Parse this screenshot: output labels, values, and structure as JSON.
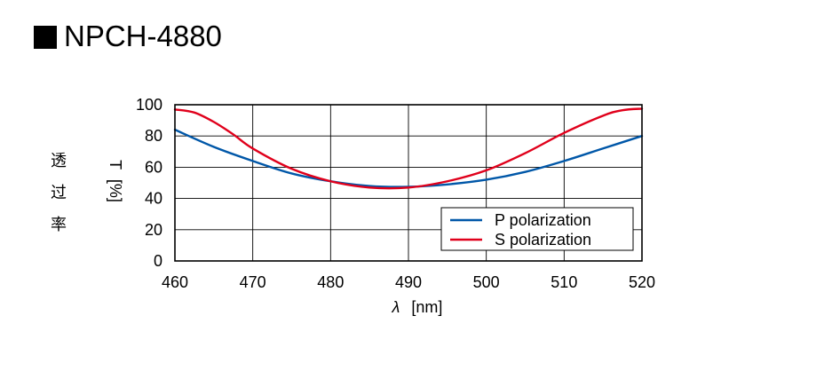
{
  "title": "NPCH-4880",
  "side_label": [
    "透",
    "过",
    "率"
  ],
  "chart_data": {
    "type": "line",
    "title": "NPCH-4880",
    "xlabel_symbol": "λ",
    "xlabel_unit": "[nm]",
    "ylabel_symbol": "T",
    "ylabel_unit": "[%]",
    "xlim": [
      460,
      520
    ],
    "ylim": [
      0,
      100
    ],
    "xticks": [
      460,
      470,
      480,
      490,
      500,
      510,
      520
    ],
    "yticks": [
      0,
      20,
      40,
      60,
      80,
      100
    ],
    "grid": true,
    "legend_position": "bottom-right",
    "series": [
      {
        "name": "P polarization",
        "color": "#0057a8",
        "x": [
          460,
          465,
          470,
          475,
          480,
          485,
          490,
          495,
          500,
          505,
          510,
          515,
          520
        ],
        "y": [
          84,
          73,
          64,
          56,
          51,
          48,
          47.5,
          49,
          52,
          57,
          64,
          72,
          80
        ]
      },
      {
        "name": "S polarization",
        "color": "#e0001b",
        "x": [
          460,
          462.5,
          465,
          467.5,
          470,
          475,
          480,
          485,
          490,
          495,
          500,
          505,
          510,
          515,
          517.5,
          520
        ],
        "y": [
          97,
          95,
          89,
          81,
          72,
          59,
          51,
          47,
          47,
          51,
          58,
          69,
          82,
          93,
          96.5,
          97.5
        ]
      }
    ]
  }
}
